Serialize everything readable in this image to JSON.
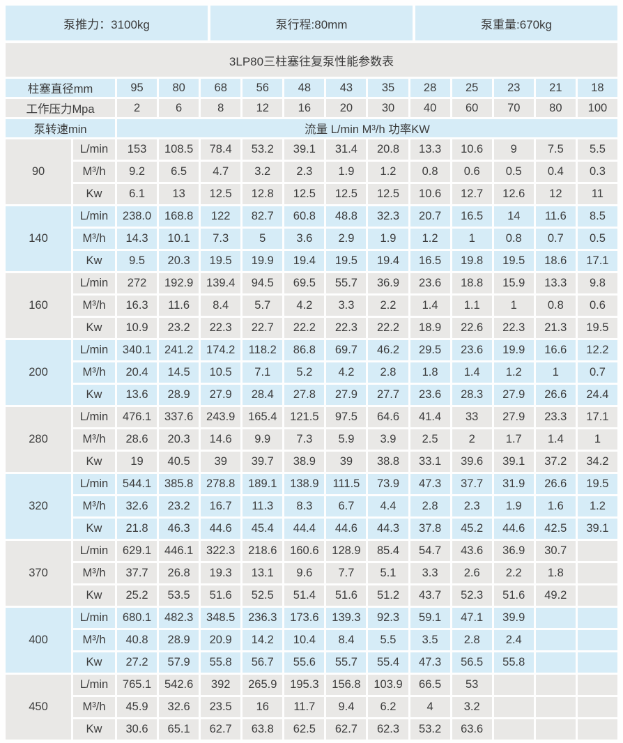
{
  "header": {
    "thrust": "泵推力：3100kg",
    "stroke": "泵行程:80mm",
    "weight": "泵重量:670kg",
    "title": "3LP80三柱塞往复泵性能参数表"
  },
  "colors": {
    "band_blue": "#d6ecf7",
    "band_gray": "#e9e8e6",
    "text": "#3c3c3c"
  },
  "table": {
    "diameter_label": "柱塞直径mm",
    "pressure_label": "工作压力Mpa",
    "speed_label": "泵转速min",
    "flow_header": "流量 L/min M³/h  功率KW",
    "unit_labels": [
      "L/min",
      "M³/h",
      "Kw"
    ],
    "diameters": [
      "95",
      "80",
      "68",
      "56",
      "48",
      "43",
      "35",
      "28",
      "25",
      "23",
      "21",
      "18"
    ],
    "pressures": [
      "2",
      "6",
      "8",
      "12",
      "16",
      "20",
      "30",
      "40",
      "60",
      "70",
      "80",
      "100"
    ],
    "groups": [
      {
        "speed": "90",
        "tone": "gray",
        "rows": {
          "lmin": [
            "153",
            "108.5",
            "78.4",
            "53.2",
            "39.1",
            "31.4",
            "20.8",
            "13.3",
            "10.6",
            "9",
            "7.5",
            "5.5"
          ],
          "m3h": [
            "9.2",
            "6.5",
            "4.7",
            "3.2",
            "2.3",
            "1.9",
            "1.2",
            "0.8",
            "0.6",
            "0.5",
            "0.4",
            "0.3"
          ],
          "kw": [
            "6.1",
            "13",
            "12.5",
            "12.8",
            "12.5",
            "12.5",
            "12.5",
            "10.6",
            "12.7",
            "12.6",
            "12",
            "11"
          ]
        }
      },
      {
        "speed": "140",
        "tone": "blue",
        "rows": {
          "lmin": [
            "238.0",
            "168.8",
            "122",
            "82.7",
            "60.8",
            "48.8",
            "32.3",
            "20.7",
            "16.5",
            "14",
            "11.6",
            "8.5"
          ],
          "m3h": [
            "14.3",
            "10.1",
            "7.3",
            "5",
            "3.6",
            "2.9",
            "1.9",
            "1.2",
            "1",
            "0.8",
            "0.7",
            "0.5"
          ],
          "kw": [
            "9.5",
            "20.3",
            "19.5",
            "19.9",
            "19.4",
            "19.5",
            "19.4",
            "16.5",
            "19.8",
            "19.5",
            "18.6",
            "17.1"
          ]
        }
      },
      {
        "speed": "160",
        "tone": "gray",
        "rows": {
          "lmin": [
            "272",
            "192.9",
            "139.4",
            "94.5",
            "69.5",
            "55.7",
            "36.9",
            "23.6",
            "18.8",
            "15.9",
            "13.3",
            "9.8"
          ],
          "m3h": [
            "16.3",
            "11.6",
            "8.4",
            "5.7",
            "4.2",
            "3.3",
            "2.2",
            "1.4",
            "1.1",
            "1",
            "0.8",
            "0.6"
          ],
          "kw": [
            "10.9",
            "23.2",
            "22.3",
            "22.7",
            "22.2",
            "22.3",
            "22.2",
            "18.9",
            "22.6",
            "22.3",
            "21.3",
            "19.5"
          ]
        }
      },
      {
        "speed": "200",
        "tone": "blue",
        "rows": {
          "lmin": [
            "340.1",
            "241.2",
            "174.2",
            "118.2",
            "86.8",
            "69.7",
            "46.2",
            "29.5",
            "23.6",
            "19.9",
            "16.6",
            "12.2"
          ],
          "m3h": [
            "20.4",
            "14.5",
            "10.5",
            "7.1",
            "5.2",
            "4.2",
            "2.8",
            "1.8",
            "1.4",
            "1.2",
            "1",
            "0.7"
          ],
          "kw": [
            "13.6",
            "28.9",
            "27.9",
            "28.4",
            "27.8",
            "27.9",
            "27.7",
            "23.6",
            "28.3",
            "27.9",
            "26.6",
            "24.4"
          ]
        }
      },
      {
        "speed": "280",
        "tone": "gray",
        "rows": {
          "lmin": [
            "476.1",
            "337.6",
            "243.9",
            "165.4",
            "121.5",
            "97.5",
            "64.6",
            "41.4",
            "33",
            "27.9",
            "23.3",
            "17.1"
          ],
          "m3h": [
            "28.6",
            "20.3",
            "14.6",
            "9.9",
            "7.3",
            "5.9",
            "3.9",
            "2.5",
            "2",
            "1.7",
            "1.4",
            "1"
          ],
          "kw": [
            "19",
            "40.5",
            "39",
            "39.7",
            "38.9",
            "39",
            "38.8",
            "33.1",
            "39.6",
            "39.1",
            "37.2",
            "34.2"
          ]
        }
      },
      {
        "speed": "320",
        "tone": "blue",
        "rows": {
          "lmin": [
            "544.1",
            "385.8",
            "278.8",
            "189.1",
            "138.9",
            "111.5",
            "73.9",
            "47.3",
            "37.7",
            "31.9",
            "26.6",
            "19.5"
          ],
          "m3h": [
            "32.6",
            "23.2",
            "16.7",
            "11.3",
            "8.3",
            "6.7",
            "4.4",
            "2.8",
            "2.3",
            "1.9",
            "1.6",
            "1.2"
          ],
          "kw": [
            "21.8",
            "46.3",
            "44.6",
            "45.4",
            "44.4",
            "44.6",
            "44.3",
            "37.8",
            "45.2",
            "44.6",
            "42.5",
            "39.1"
          ]
        }
      },
      {
        "speed": "370",
        "tone": "gray",
        "rows": {
          "lmin": [
            "629.1",
            "446.1",
            "322.3",
            "218.6",
            "160.6",
            "128.9",
            "85.4",
            "54.7",
            "43.6",
            "36.9",
            "30.7",
            ""
          ],
          "m3h": [
            "37.7",
            "26.8",
            "19.3",
            "13.1",
            "9.6",
            "7.7",
            "5.1",
            "3.3",
            "2.6",
            "2.2",
            "1.8",
            ""
          ],
          "kw": [
            "25.2",
            "53.5",
            "51.6",
            "52.5",
            "51.4",
            "51.6",
            "51.2",
            "43.7",
            "52.3",
            "51.6",
            "49.2",
            ""
          ]
        }
      },
      {
        "speed": "400",
        "tone": "blue",
        "rows": {
          "lmin": [
            "680.1",
            "482.3",
            "348.5",
            "236.3",
            "173.6",
            "139.3",
            "92.3",
            "59.1",
            "47.1",
            "39.9",
            "",
            ""
          ],
          "m3h": [
            "40.8",
            "28.9",
            "20.9",
            "14.2",
            "10.4",
            "8.4",
            "5.5",
            "3.5",
            "2.8",
            "2.4",
            "",
            ""
          ],
          "kw": [
            "27.2",
            "57.9",
            "55.8",
            "56.7",
            "55.6",
            "55.7",
            "55.4",
            "47.3",
            "56.5",
            "55.8",
            "",
            ""
          ]
        }
      },
      {
        "speed": "450",
        "tone": "gray",
        "rows": {
          "lmin": [
            "765.1",
            "542.6",
            "392",
            "265.9",
            "195.3",
            "156.8",
            "103.9",
            "66.5",
            "53",
            "",
            "",
            ""
          ],
          "m3h": [
            "45.9",
            "32.6",
            "23.5",
            "16",
            "11.7",
            "9.4",
            "6.2",
            "4",
            "3.2",
            "",
            "",
            ""
          ],
          "kw": [
            "30.6",
            "65.1",
            "62.7",
            "63.8",
            "62.5",
            "62.7",
            "62.3",
            "53.2",
            "63.6",
            "",
            "",
            ""
          ]
        }
      }
    ]
  }
}
